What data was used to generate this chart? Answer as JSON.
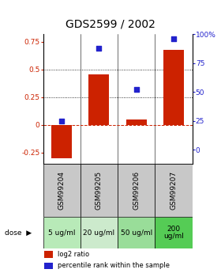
{
  "title": "GDS2599 / 2002",
  "samples": [
    "GSM99204",
    "GSM99205",
    "GSM99206",
    "GSM99207"
  ],
  "log2_ratio": [
    -0.3,
    0.46,
    0.05,
    0.68
  ],
  "percentile_rank": [
    25,
    88,
    52,
    96
  ],
  "doses": [
    "5 ug/ml",
    "20 ug/ml",
    "50 ug/ml",
    "200\nug/ml"
  ],
  "dose_bg_colors": [
    "#b8eab8",
    "#cceacc",
    "#99dd99",
    "#55cc55"
  ],
  "bar_color": "#cc2200",
  "dot_color": "#2222cc",
  "left_yticks": [
    -0.25,
    0,
    0.25,
    0.5,
    0.75
  ],
  "right_yticks": [
    0,
    25,
    50,
    75,
    100
  ],
  "right_yticklabels": [
    "0",
    "25",
    "50",
    "75",
    "100%"
  ],
  "ylim_left": [
    -0.35,
    0.82
  ],
  "ylim_right": [
    -12.25,
    100
  ],
  "hline_y": [
    0.25,
    0.5
  ],
  "zero_line_y": 0,
  "sample_bg_color": "#c8c8c8",
  "plot_bg_color": "#ffffff",
  "legend_red_label": "log2 ratio",
  "legend_blue_label": "percentile rank within the sample",
  "title_fontsize": 10,
  "tick_fontsize": 6.5,
  "sample_label_fontsize": 6.5,
  "dose_label_fontsize": 6.5
}
